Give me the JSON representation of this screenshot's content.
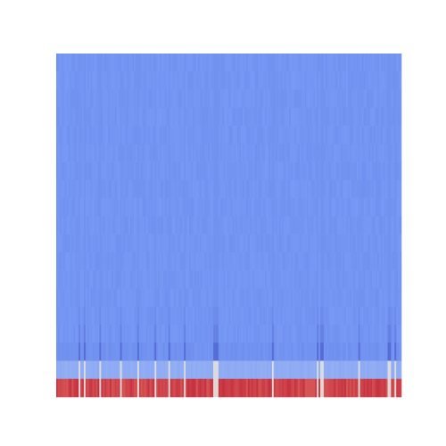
{
  "chart_data": {
    "type": "heatmap",
    "title": "",
    "xlabel": "",
    "ylabel": "",
    "colormap": "coolwarm",
    "colors": {
      "low": "#3b4cc0",
      "mid": "#dddddd",
      "high": "#b40426",
      "base": "#7b9ff9",
      "background": "#ffffff"
    },
    "n_columns": 200,
    "value_range": [
      0,
      1
    ],
    "rows": [
      {
        "base": 0.22,
        "spike": 0.21
      },
      {
        "base": 0.22,
        "spike": 0.21
      },
      {
        "base": 0.22,
        "spike": 0.21
      },
      {
        "base": 0.22,
        "spike": 0.21
      },
      {
        "base": 0.22,
        "spike": 0.21
      },
      {
        "base": 0.22,
        "spike": 0.21
      },
      {
        "base": 0.22,
        "spike": 0.21
      },
      {
        "base": 0.22,
        "spike": 0.21
      },
      {
        "base": 0.22,
        "spike": 0.21
      },
      {
        "base": 0.22,
        "spike": 0.21
      },
      {
        "base": 0.22,
        "spike": 0.21
      },
      {
        "base": 0.22,
        "spike": 0.21
      },
      {
        "base": 0.22,
        "spike": 0.21
      },
      {
        "base": 0.22,
        "spike": 0.21
      },
      {
        "base": 0.22,
        "spike": 0.19
      },
      {
        "base": 0.22,
        "spike": 0.16
      },
      {
        "base": 0.21,
        "spike": 0.1
      },
      {
        "base": 0.3,
        "spike": 0.49
      },
      {
        "base": 0.9,
        "spike": 0.52
      }
    ],
    "spike_columns": [
      13,
      16,
      25,
      37,
      47,
      57,
      65,
      74,
      91,
      92,
      93,
      125,
      151,
      153,
      154,
      175,
      192,
      193,
      196
    ]
  }
}
